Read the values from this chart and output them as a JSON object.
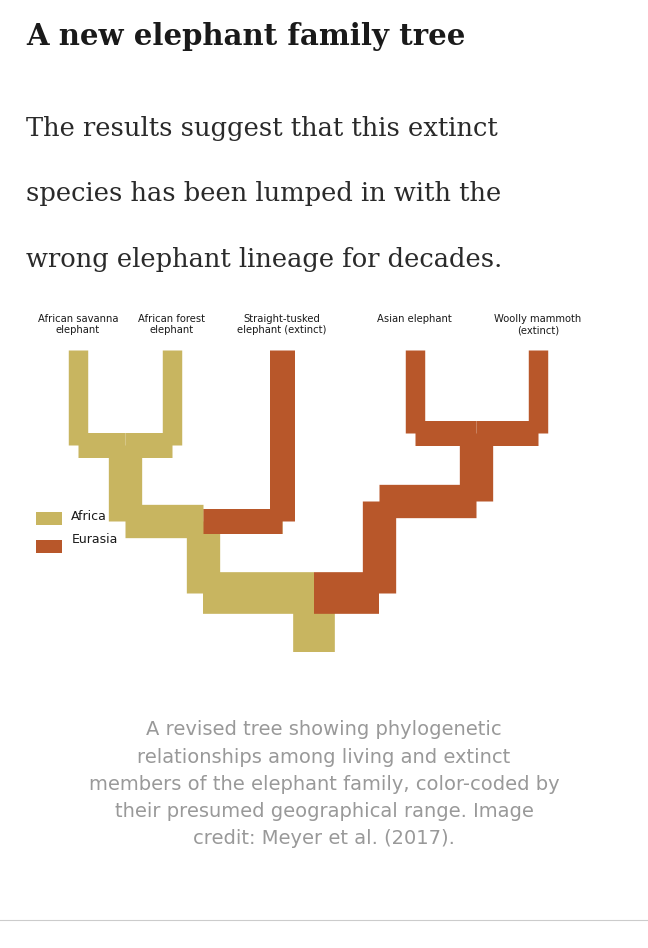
{
  "title": "A new elephant family tree",
  "subtitle_line1": "The results suggest that this extinct",
  "subtitle_line2": "species has been lumped in with the",
  "subtitle_line3": "wrong elephant lineage for decades.",
  "caption": "A revised tree showing phylogenetic\nrelationships among living and extinct\nmembers of the elephant family, color-coded by\ntheir presumed geographical range. Image\ncredit: Meyer et al. (2017).",
  "species_labels": [
    "African savanna\nelephant",
    "African forest\nelephant",
    "Straight-tusked\nelephant (extinct)",
    "Asian elephant",
    "Woolly mammoth\n(extinct)"
  ],
  "africa_color": "#C8B560",
  "eurasia_color": "#B8572A",
  "background_color": "#ffffff",
  "title_color": "#1a1a1a",
  "subtitle_color": "#2a2a2a",
  "caption_color": "#999999",
  "label_color": "#1a1a1a",
  "legend_africa": "Africa",
  "legend_eurasia": "Eurasia",
  "line_color": "#cccccc"
}
